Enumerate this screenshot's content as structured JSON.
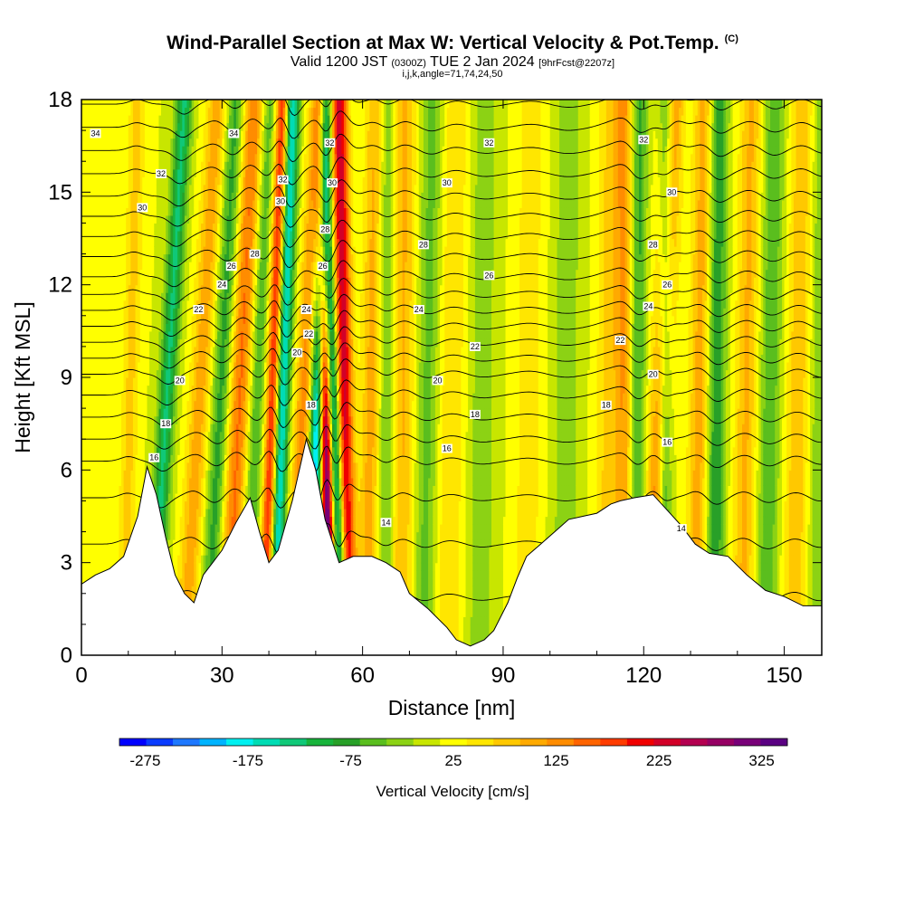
{
  "header": {
    "title": "Wind-Parallel Section at Max W: Vertical Velocity & Pot.Temp.",
    "copyright_mark": "(C)",
    "valid_prefix": "Valid 1200 JST",
    "valid_utc": "(0300Z)",
    "valid_date": "TUE 2 Jan 2024",
    "forecast_info": "[9hrFcst@2207z]",
    "grid_info": "i,j,k,angle=71,74,24,50"
  },
  "colors": {
    "palette": [
      "#0000ff",
      "#0a3cff",
      "#1e78ff",
      "#00b4ff",
      "#00f0f0",
      "#00dcb4",
      "#10c878",
      "#18b43c",
      "#28a028",
      "#5abe1e",
      "#8cd214",
      "#c8e600",
      "#ffff00",
      "#ffe600",
      "#ffc800",
      "#ffaa00",
      "#ff8c00",
      "#ff6400",
      "#ff3c00",
      "#f00000",
      "#d20028",
      "#b40050",
      "#960064",
      "#780078",
      "#5a0082"
    ],
    "contour": "#000000",
    "terrain": "#ffffff"
  },
  "chart_data": {
    "type": "heatmap",
    "description_type": "vertical cross-section",
    "xlabel": "Distance [nm]",
    "ylabel": "Height [Kft MSL]",
    "xlim": [
      0,
      158
    ],
    "ylim": [
      0,
      18
    ],
    "x_ticks": [
      0,
      30,
      60,
      90,
      120,
      150
    ],
    "y_ticks": [
      0,
      3,
      6,
      9,
      12,
      15,
      18
    ],
    "terrain_height_kft": [
      [
        0,
        2.3
      ],
      [
        3,
        2.6
      ],
      [
        6,
        2.8
      ],
      [
        9,
        3.2
      ],
      [
        12,
        4.5
      ],
      [
        14,
        6.1
      ],
      [
        16,
        5.2
      ],
      [
        18,
        3.8
      ],
      [
        20,
        2.6
      ],
      [
        22,
        2.0
      ],
      [
        24,
        1.7
      ],
      [
        26,
        2.6
      ],
      [
        28,
        3.0
      ],
      [
        30,
        3.4
      ],
      [
        33,
        4.3
      ],
      [
        36,
        5.1
      ],
      [
        38,
        4.0
      ],
      [
        40,
        3.0
      ],
      [
        42,
        3.4
      ],
      [
        45,
        5.0
      ],
      [
        48,
        7.0
      ],
      [
        50,
        6.0
      ],
      [
        52,
        4.4
      ],
      [
        55,
        3.0
      ],
      [
        58,
        3.2
      ],
      [
        62,
        3.2
      ],
      [
        65,
        3.0
      ],
      [
        68,
        2.7
      ],
      [
        70,
        2.0
      ],
      [
        74,
        1.5
      ],
      [
        78,
        0.9
      ],
      [
        80,
        0.5
      ],
      [
        83,
        0.3
      ],
      [
        86,
        0.5
      ],
      [
        88,
        0.8
      ],
      [
        91,
        1.7
      ],
      [
        93,
        2.5
      ],
      [
        95,
        3.2
      ],
      [
        98,
        3.6
      ],
      [
        101,
        4.0
      ],
      [
        104,
        4.4
      ],
      [
        107,
        4.5
      ],
      [
        110,
        4.6
      ],
      [
        113,
        4.9
      ],
      [
        115,
        5.0
      ],
      [
        118,
        5.1
      ],
      [
        122,
        5.2
      ],
      [
        125,
        4.7
      ],
      [
        128,
        4.2
      ],
      [
        131,
        3.6
      ],
      [
        134,
        3.3
      ],
      [
        138,
        3.2
      ],
      [
        142,
        2.6
      ],
      [
        146,
        2.1
      ],
      [
        150,
        1.9
      ],
      [
        154,
        1.6
      ],
      [
        158,
        1.6
      ]
    ],
    "vertical_velocity": {
      "units": "cm/s",
      "label": "Vertical Velocity [cm/s]",
      "colorbar_ticks": [
        -275,
        -175,
        -75,
        25,
        125,
        225,
        325
      ],
      "colorbar_min": -300,
      "colorbar_max": 350,
      "colorbar_step": 25,
      "background": 0,
      "bands": [
        {
          "x_bottom": 9,
          "tilt": 3,
          "width": 1.8,
          "w": 60
        },
        {
          "x_bottom": 15,
          "tilt": 7,
          "width": 1.8,
          "w": -130
        },
        {
          "x_bottom": 22,
          "tilt": 7,
          "width": 2.2,
          "w": 90
        },
        {
          "x_bottom": 27,
          "tilt": 6,
          "width": 2.0,
          "w": -90
        },
        {
          "x_bottom": 31,
          "tilt": 6,
          "width": 2.4,
          "w": 130
        },
        {
          "x_bottom": 35,
          "tilt": 5,
          "width": 1.8,
          "w": -80
        },
        {
          "x_bottom": 39,
          "tilt": 4,
          "width": 1.4,
          "w": 200
        },
        {
          "x_bottom": 41,
          "tilt": 4,
          "width": 1.6,
          "w": -190
        },
        {
          "x_bottom": 45,
          "tilt": 6,
          "width": 2.2,
          "w": 120
        },
        {
          "x_bottom": 49,
          "tilt": 3,
          "width": 1.6,
          "w": -250
        },
        {
          "x_bottom": 53,
          "tilt": -2,
          "width": 1.4,
          "w": 330
        },
        {
          "x_bottom": 56,
          "tilt": -5,
          "width": 1.4,
          "w": -230
        },
        {
          "x_bottom": 57,
          "tilt": -2,
          "width": 1.8,
          "w": 220
        },
        {
          "x_bottom": 61,
          "tilt": 2,
          "width": 2.2,
          "w": 90
        },
        {
          "x_bottom": 65,
          "tilt": 0,
          "width": 2.0,
          "w": -70
        },
        {
          "x_bottom": 68,
          "tilt": 1,
          "width": 2.6,
          "w": 80
        },
        {
          "x_bottom": 73,
          "tilt": 2,
          "width": 2.5,
          "w": -60
        },
        {
          "x_bottom": 78,
          "tilt": 2,
          "width": 3.0,
          "w": 50
        },
        {
          "x_bottom": 85,
          "tilt": 1,
          "width": 3.0,
          "w": -40
        },
        {
          "x_bottom": 95,
          "tilt": 1,
          "width": 3.0,
          "w": 40
        },
        {
          "x_bottom": 103,
          "tilt": 1,
          "width": 3.0,
          "w": -40
        },
        {
          "x_bottom": 112,
          "tilt": 1,
          "width": 2.5,
          "w": 60
        },
        {
          "x_bottom": 116,
          "tilt": 0,
          "width": 2.0,
          "w": 100
        },
        {
          "x_bottom": 118,
          "tilt": 1,
          "width": 1.8,
          "w": -90
        },
        {
          "x_bottom": 122,
          "tilt": 4,
          "width": 2.2,
          "w": 160
        },
        {
          "x_bottom": 124,
          "tilt": 1,
          "width": 1.6,
          "w": -160
        },
        {
          "x_bottom": 131,
          "tilt": 2,
          "width": 2.2,
          "w": 90
        },
        {
          "x_bottom": 135,
          "tilt": 1,
          "width": 2.0,
          "w": -100
        },
        {
          "x_bottom": 141,
          "tilt": 2,
          "width": 2.4,
          "w": 80
        },
        {
          "x_bottom": 146,
          "tilt": 2,
          "width": 2.4,
          "w": -70
        },
        {
          "x_bottom": 152,
          "tilt": 2,
          "width": 2.6,
          "w": 70
        },
        {
          "x_bottom": 157,
          "tilt": 1,
          "width": 2.2,
          "w": -50
        }
      ]
    },
    "potential_temperature": {
      "units": "deg C",
      "contour_interval": 1,
      "value_at_height": [
        [
          0,
          12
        ],
        [
          3,
          13.6
        ],
        [
          6,
          15.6
        ],
        [
          9,
          19.8
        ],
        [
          12,
          25.6
        ],
        [
          15,
          30.2
        ],
        [
          18,
          34.2
        ]
      ],
      "labels": [
        {
          "value": "34",
          "x": 3,
          "y": 16.9
        },
        {
          "value": "34",
          "x": 32.5,
          "y": 16.9
        },
        {
          "value": "32",
          "x": 17,
          "y": 15.6
        },
        {
          "value": "30",
          "x": 13,
          "y": 14.5
        },
        {
          "value": "32",
          "x": 43,
          "y": 15.4
        },
        {
          "value": "30",
          "x": 42.5,
          "y": 14.7
        },
        {
          "value": "32",
          "x": 53,
          "y": 16.6
        },
        {
          "value": "30",
          "x": 53.5,
          "y": 15.3
        },
        {
          "value": "28",
          "x": 52,
          "y": 13.8
        },
        {
          "value": "26",
          "x": 51.5,
          "y": 12.6
        },
        {
          "value": "28",
          "x": 37,
          "y": 13.0
        },
        {
          "value": "26",
          "x": 32,
          "y": 12.6
        },
        {
          "value": "24",
          "x": 30,
          "y": 12.0
        },
        {
          "value": "22",
          "x": 25,
          "y": 11.2
        },
        {
          "value": "24",
          "x": 48,
          "y": 11.2
        },
        {
          "value": "22",
          "x": 48.5,
          "y": 10.4
        },
        {
          "value": "20",
          "x": 46,
          "y": 9.8
        },
        {
          "value": "20",
          "x": 21,
          "y": 8.9
        },
        {
          "value": "18",
          "x": 18,
          "y": 7.5
        },
        {
          "value": "16",
          "x": 15.5,
          "y": 6.4
        },
        {
          "value": "18",
          "x": 49,
          "y": 8.1
        },
        {
          "value": "32",
          "x": 87,
          "y": 16.6
        },
        {
          "value": "30",
          "x": 78,
          "y": 15.3
        },
        {
          "value": "28",
          "x": 73,
          "y": 13.3
        },
        {
          "value": "26",
          "x": 87,
          "y": 12.3
        },
        {
          "value": "24",
          "x": 72,
          "y": 11.2
        },
        {
          "value": "22",
          "x": 84,
          "y": 10.0
        },
        {
          "value": "20",
          "x": 76,
          "y": 8.9
        },
        {
          "value": "18",
          "x": 84,
          "y": 7.8
        },
        {
          "value": "16",
          "x": 78,
          "y": 6.7
        },
        {
          "value": "14",
          "x": 65,
          "y": 4.3
        },
        {
          "value": "32",
          "x": 120,
          "y": 16.7
        },
        {
          "value": "30",
          "x": 126,
          "y": 15.0
        },
        {
          "value": "28",
          "x": 122,
          "y": 13.3
        },
        {
          "value": "26",
          "x": 125,
          "y": 12.0
        },
        {
          "value": "24",
          "x": 121,
          "y": 11.3
        },
        {
          "value": "22",
          "x": 115,
          "y": 10.2
        },
        {
          "value": "20",
          "x": 122,
          "y": 9.1
        },
        {
          "value": "18",
          "x": 112,
          "y": 8.1
        },
        {
          "value": "16",
          "x": 125,
          "y": 6.9
        },
        {
          "value": "14",
          "x": 128,
          "y": 4.1
        }
      ]
    }
  }
}
